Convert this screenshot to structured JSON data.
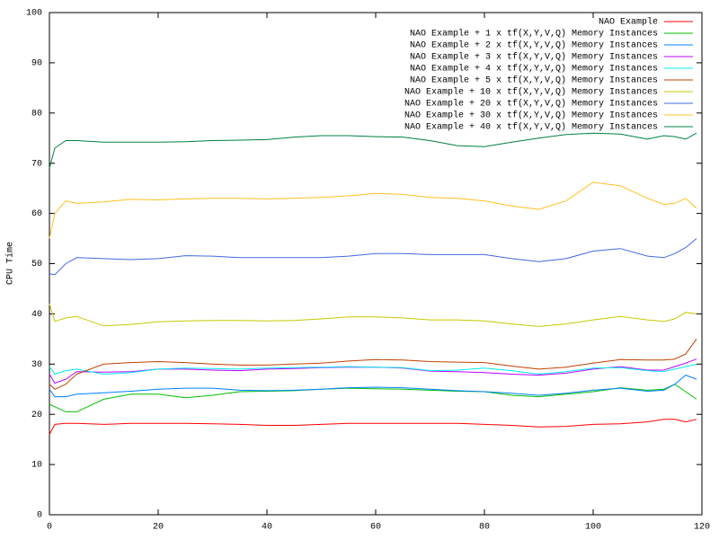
{
  "chart_data": {
    "type": "line",
    "y_label": "CPU Time",
    "x": [
      0,
      1,
      3,
      5,
      10,
      15,
      20,
      25,
      30,
      35,
      40,
      45,
      50,
      55,
      60,
      65,
      70,
      75,
      80,
      85,
      90,
      95,
      100,
      105,
      110,
      113,
      115,
      117,
      119
    ],
    "xlim": [
      0,
      120
    ],
    "xticks": [
      0,
      20,
      40,
      60,
      80,
      100,
      120
    ],
    "ylim": [
      0,
      100
    ],
    "yticks": [
      0,
      10,
      20,
      30,
      40,
      50,
      60,
      70,
      80,
      90,
      100
    ],
    "legend": "top-right",
    "series": [
      {
        "name": "NAO Example",
        "color": "#ff0000",
        "values": [
          16,
          18,
          18.2,
          18.2,
          18,
          18.2,
          18.2,
          18.2,
          18.1,
          18,
          17.8,
          17.8,
          18,
          18.2,
          18.2,
          18.2,
          18.2,
          18.2,
          18,
          17.8,
          17.5,
          17.6,
          18,
          18.1,
          18.5,
          19,
          19,
          18.5,
          19
        ]
      },
      {
        "name": "NAO Example + 1 x tf(X,Y,V,Q) Memory Instances",
        "color": "#00c000",
        "values": [
          22,
          21.5,
          20.5,
          20.5,
          23,
          24,
          24,
          23.3,
          23.8,
          24.5,
          24.6,
          24.7,
          25,
          25.2,
          25.1,
          25,
          24.8,
          24.6,
          24.5,
          23.8,
          23.5,
          24,
          24.5,
          25.3,
          24.8,
          25,
          26,
          24.5,
          23
        ]
      },
      {
        "name": "NAO Example + 2 x tf(X,Y,V,Q) Memory Instances",
        "color": "#0080ff",
        "values": [
          25,
          23.5,
          23.5,
          24,
          24.3,
          24.6,
          25,
          25.2,
          25.2,
          24.8,
          24.7,
          24.8,
          25,
          25.3,
          25.4,
          25.3,
          25,
          24.7,
          24.5,
          24.2,
          23.8,
          24.2,
          24.8,
          25.2,
          24.6,
          24.8,
          26,
          27.8,
          27
        ]
      },
      {
        "name": "NAO Example + 3 x tf(X,Y,V,Q) Memory Instances",
        "color": "#c000ff",
        "values": [
          28,
          26.2,
          27,
          28.5,
          28.4,
          28.5,
          29,
          29,
          28.8,
          28.7,
          29,
          29.1,
          29.3,
          29.4,
          29.4,
          29.2,
          28.6,
          28.5,
          28.3,
          28,
          27.8,
          28.2,
          29,
          29.5,
          28.8,
          28.8,
          29.5,
          30.2,
          31
        ]
      },
      {
        "name": "NAO Example + 4 x tf(X,Y,V,Q) Memory Instances",
        "color": "#00eeee",
        "values": [
          29.5,
          28,
          28.7,
          29,
          28,
          28.3,
          29,
          29.2,
          29.1,
          29,
          29.2,
          29.3,
          29.4,
          29.5,
          29.4,
          29.3,
          28.7,
          28.8,
          29.2,
          28.7,
          28,
          28.5,
          29.2,
          29.3,
          28.7,
          28.5,
          29,
          29.5,
          30
        ]
      },
      {
        "name": "NAO Example + 5 x tf(X,Y,V,Q) Memory Instances",
        "color": "#c04000",
        "values": [
          26,
          25,
          26,
          28,
          30,
          30.3,
          30.5,
          30.3,
          30,
          29.8,
          29.8,
          30,
          30.2,
          30.6,
          30.9,
          30.8,
          30.5,
          30.4,
          30.3,
          29.6,
          29,
          29.4,
          30.2,
          30.9,
          30.8,
          30.8,
          31,
          32,
          35
        ]
      },
      {
        "name": "NAO Example + 10 x tf(X,Y,V,Q) Memory Instances",
        "color": "#c8c800",
        "values": [
          42,
          38.5,
          39.2,
          39.5,
          37.6,
          37.9,
          38.4,
          38.6,
          38.7,
          38.7,
          38.6,
          38.7,
          39,
          39.4,
          39.4,
          39.2,
          38.8,
          38.8,
          38.6,
          38,
          37.5,
          38,
          38.8,
          39.5,
          38.8,
          38.5,
          39,
          40.3,
          40
        ]
      },
      {
        "name": "NAO Example + 20 x tf(X,Y,V,Q) Memory Instances",
        "color": "#4169e1",
        "values": [
          48,
          47.8,
          50,
          51.2,
          51,
          50.8,
          51,
          51.6,
          51.5,
          51.2,
          51.2,
          51.2,
          51.2,
          51.5,
          52,
          52,
          51.8,
          51.8,
          51.8,
          51,
          50.4,
          51,
          52.5,
          53,
          51.5,
          51.2,
          52,
          53.2,
          55
        ]
      },
      {
        "name": "NAO Example + 30 x tf(X,Y,V,Q) Memory Instances",
        "color": "#ffc020",
        "values": [
          55,
          60,
          62.5,
          62,
          62.3,
          62.8,
          62.7,
          62.9,
          63,
          63,
          62.9,
          63,
          63.2,
          63.5,
          64,
          63.8,
          63.2,
          63,
          62.5,
          61.5,
          60.8,
          62.5,
          66.2,
          65.5,
          63,
          61.8,
          62,
          63,
          61
        ]
      },
      {
        "name": "NAO Example + 40 x tf(X,Y,V,Q) Memory Instances",
        "color": "#008040",
        "values": [
          69,
          73,
          74.5,
          74.5,
          74.2,
          74.2,
          74.2,
          74.3,
          74.5,
          74.6,
          74.7,
          75.2,
          75.5,
          75.5,
          75.3,
          75.2,
          74.5,
          73.5,
          73.3,
          74.2,
          75,
          75.7,
          76,
          75.8,
          74.8,
          75.5,
          75.3,
          74.8,
          76
        ]
      }
    ]
  }
}
